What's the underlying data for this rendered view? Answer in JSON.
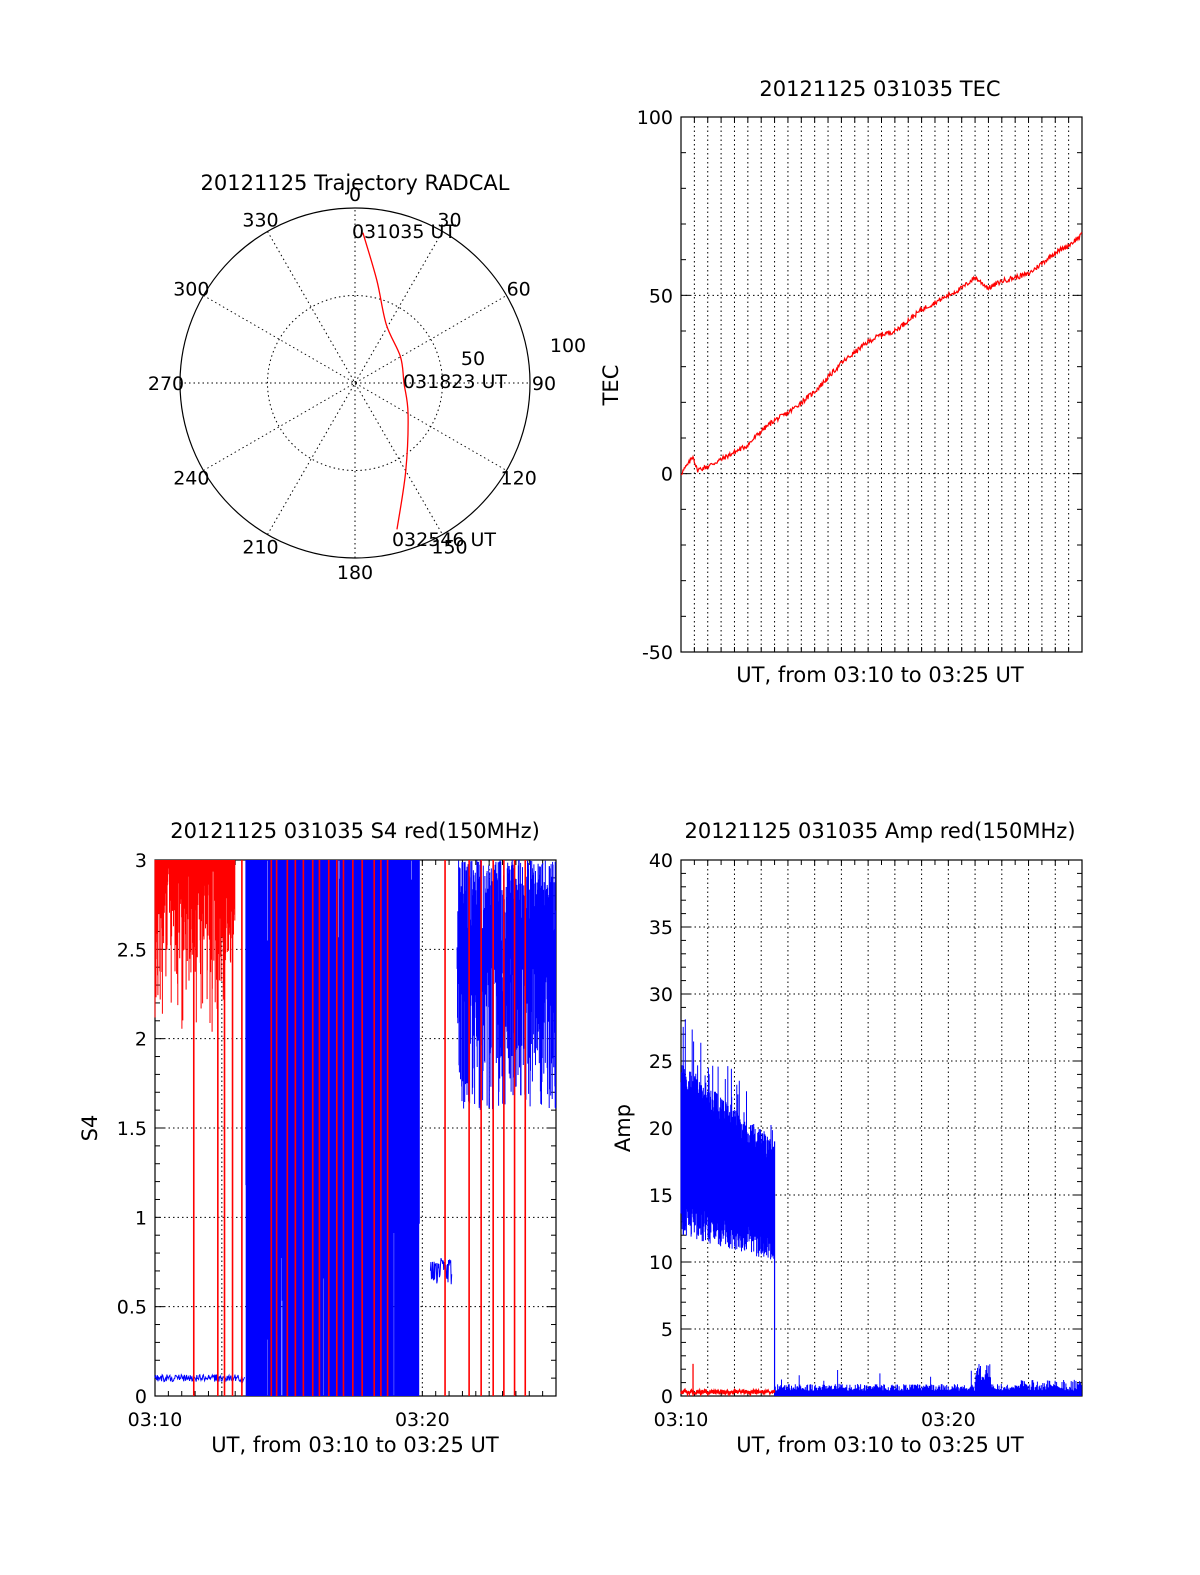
{
  "chart_data": [
    {
      "id": "trajectory",
      "type": "polar",
      "title": "20121125 Trajectory RADCAL",
      "azimuth_labels": [
        "0",
        "30",
        "60",
        "90",
        "120",
        "150",
        "180",
        "210",
        "240",
        "270",
        "300",
        "330"
      ],
      "radial_labels": [
        "50",
        "100"
      ],
      "radial_ticks": [
        50,
        100
      ],
      "radial_max": 100,
      "series": [
        {
          "color": "#ff0000",
          "points": [
            {
              "az": 3,
              "r": 86
            },
            {
              "az": 12,
              "r": 60
            },
            {
              "az": 28,
              "r": 38
            },
            {
              "az": 60,
              "r": 30
            },
            {
              "az": 90,
              "r": 28
            },
            {
              "az": 120,
              "r": 35
            },
            {
              "az": 150,
              "r": 58
            },
            {
              "az": 164,
              "r": 87
            }
          ]
        }
      ],
      "annotations": [
        {
          "text": "031035 UT",
          "az": 3,
          "r": 86
        },
        {
          "text": "031823 UT",
          "az": 90,
          "r": 28
        },
        {
          "text": "032546 UT",
          "az": 164,
          "r": 87
        }
      ]
    },
    {
      "id": "tec",
      "type": "line",
      "title": "20121125 031035 TEC",
      "xlabel": "UT, from 03:10 to 03:25 UT",
      "ylabel": "TEC",
      "xlim": [
        0,
        15
      ],
      "ylim": [
        -50,
        100
      ],
      "yticks": [
        -50,
        0,
        50,
        100
      ],
      "xticks": [],
      "xgrid_step": 0.5,
      "series": [
        {
          "color": "#ff0000",
          "x": [
            0,
            0.3,
            0.45,
            0.6,
            1.0,
            1.5,
            2.0,
            2.5,
            3.0,
            3.5,
            4.0,
            4.5,
            5.0,
            5.5,
            6.0,
            6.5,
            7.0,
            7.5,
            8.0,
            8.5,
            9.0,
            9.5,
            10.0,
            10.5,
            11.0,
            11.5,
            12.0,
            12.5,
            13.0,
            13.5,
            14.0,
            14.5,
            15.0
          ],
          "y": [
            0,
            3,
            5,
            1,
            2,
            4,
            6,
            8,
            12,
            15,
            17,
            20,
            23,
            27,
            31,
            34,
            37,
            39,
            40,
            43,
            46,
            48,
            50,
            52,
            55,
            52,
            54,
            55,
            56,
            59,
            62,
            64,
            67
          ]
        }
      ]
    },
    {
      "id": "s4",
      "type": "line",
      "title": "20121125 031035 S4 red(150MHz)",
      "xlabel": "UT, from 03:10 to 03:25 UT",
      "ylabel": "S4",
      "xlim": [
        0,
        15
      ],
      "ylim": [
        0,
        3
      ],
      "yticks": [
        0,
        0.5,
        1,
        1.5,
        2,
        2.5,
        3
      ],
      "ytick_labels": [
        "0",
        "0.5",
        "1",
        "1.5",
        "2",
        "2.5",
        "3"
      ],
      "xticks": [
        0,
        10
      ],
      "xtick_labels": [
        "03:10",
        "03:20"
      ],
      "xgrid_step": 2.5,
      "series": [
        {
          "color": "#ff0000",
          "segments": [
            {
              "x0": 0.0,
              "x1": 1.6,
              "ymin": 1.9,
              "ymax": 3,
              "dense": true
            },
            {
              "x0": 1.6,
              "x1": 3.0,
              "ymin": 1.9,
              "ymax": 3,
              "dense": true
            }
          ],
          "spikes": [
            1.45,
            2.35,
            2.6,
            2.9,
            3.25,
            4.35,
            4.55,
            4.95,
            5.25,
            5.55,
            5.9,
            6.15,
            6.5,
            6.8,
            7.05,
            7.4,
            7.75,
            8.2,
            8.45,
            8.7,
            10.85,
            11.75,
            12.2,
            12.65,
            13.05,
            13.45,
            13.85
          ]
        },
        {
          "color": "#0000ff",
          "baseline": {
            "x0": 0.0,
            "x1": 3.35,
            "y": 0.1
          },
          "band": [
            {
              "x": 3.4,
              "ymin": 0.0,
              "ymax": 3.0
            },
            {
              "x": 9.9,
              "ymin": 0.0,
              "ymax": 3.0
            }
          ],
          "tail": {
            "x0": 11.3,
            "x1": 15.0,
            "ymin": 1.6,
            "ymax": 3.0
          }
        }
      ]
    },
    {
      "id": "amp",
      "type": "line",
      "title": "20121125 031035 Amp red(150MHz)",
      "xlabel": "UT, from 03:10 to 03:25 UT",
      "ylabel": "Amp",
      "xlim": [
        0,
        15
      ],
      "ylim": [
        0,
        40
      ],
      "yticks": [
        0,
        5,
        10,
        15,
        20,
        25,
        30,
        35,
        40
      ],
      "xticks": [
        0,
        10
      ],
      "xtick_labels": [
        "03:10",
        "03:20"
      ],
      "xgrid_step": 1,
      "series": [
        {
          "color": "#ff0000",
          "x0": 0.0,
          "x1": 3.5,
          "level": 0.3,
          "spike": {
            "x": 0.45,
            "y": 2.4
          }
        },
        {
          "color": "#0000ff",
          "x0": 0.0,
          "x1": 3.5,
          "ymin_start": 14.5,
          "ymax_start": 25,
          "ymin_end": 12.5,
          "ymax_end": 19,
          "drop_x": 3.5,
          "tail_level": 0.4
        }
      ]
    }
  ]
}
